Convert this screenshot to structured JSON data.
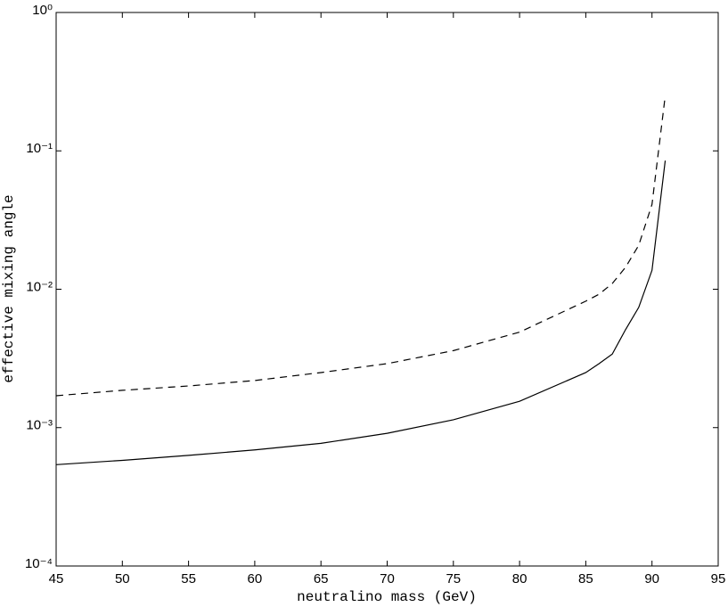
{
  "chart_data": {
    "type": "line",
    "xlabel": "neutralino mass (GeV)",
    "ylabel": "effective mixing angle",
    "x": [
      45,
      50,
      55,
      60,
      65,
      70,
      75,
      80,
      85,
      86,
      87,
      88,
      89,
      90,
      91
    ],
    "series": [
      {
        "color": "#000000",
        "dash": "none",
        "values": [
          0.00054,
          0.00058,
          0.00063,
          0.00069,
          0.00077,
          0.00091,
          0.00114,
          0.00155,
          0.0025,
          0.0029,
          0.0034,
          0.0051,
          0.0074,
          0.0137,
          0.085
        ]
      },
      {
        "color": "#000000",
        "dash": "8,6",
        "values": [
          0.0017,
          0.00186,
          0.002,
          0.00219,
          0.0025,
          0.0029,
          0.0036,
          0.0049,
          0.0082,
          0.0092,
          0.011,
          0.0144,
          0.0208,
          0.041,
          0.25
        ]
      }
    ],
    "xlim": [
      45,
      95
    ],
    "xticks": [
      45,
      50,
      55,
      60,
      65,
      70,
      75,
      80,
      85,
      90,
      95
    ],
    "ylim": [
      0.0001,
      1
    ],
    "ylog": true,
    "yticks": [
      {
        "value": 0.0001,
        "label": "10⁻⁴"
      },
      {
        "value": 0.001,
        "label": "10⁻³"
      },
      {
        "value": 0.01,
        "label": "10⁻²"
      },
      {
        "value": 0.1,
        "label": "10⁻¹"
      },
      {
        "value": 1,
        "label": "10⁰"
      }
    ],
    "grid": false
  }
}
